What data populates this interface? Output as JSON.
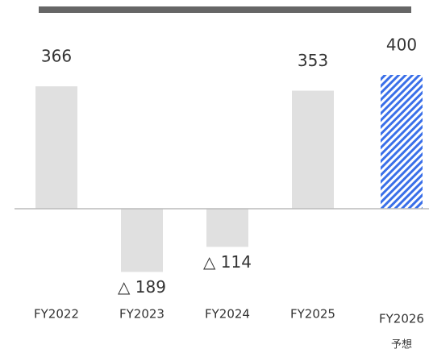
{
  "chart_data": {
    "type": "bar",
    "categories": [
      "FY2022",
      "FY2023",
      "FY2024",
      "FY2025",
      "FY2026"
    ],
    "values": [
      366,
      -189,
      -114,
      353,
      400
    ],
    "value_labels": [
      "366",
      "△ 189",
      "△ 114",
      "353",
      "400"
    ],
    "colors": [
      "#e0e0e0",
      "#e0e0e0",
      "#e0e0e0",
      "#e0e0e0",
      "#3a6fe8"
    ],
    "hatched": [
      false,
      false,
      false,
      false,
      true
    ],
    "annotations": [
      {
        "category": 4,
        "text": "予想"
      }
    ],
    "ylim": [
      -200,
      400
    ]
  }
}
